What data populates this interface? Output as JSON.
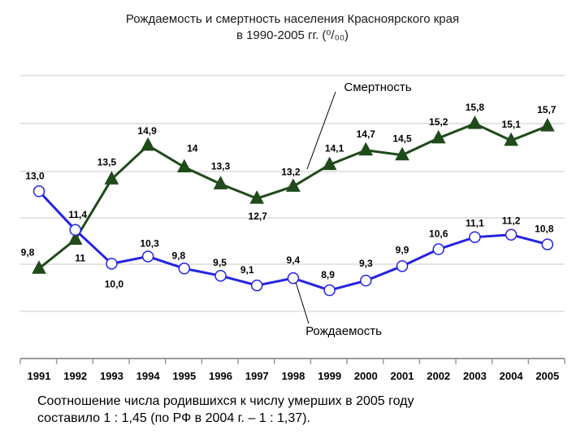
{
  "title_line1": "Рождаемость и смертность населения Красноярского края",
  "title_line2": "в 1990-2005 гг. (⁰/₀₀)",
  "footnote_line1": "Соотношение числа родившихся к числу умерших в 2005 году",
  "footnote_line2": "составило 1 : 1,45 (по РФ в 2004 г. – 1 : 1,37).",
  "colors": {
    "mortality": "#1f4a1a",
    "mortality_marker": "#1f4a1a",
    "birth": "#2424e0",
    "birth_marker_fill": "#ffffff",
    "grid": "#c8c8c8",
    "axis": "#9a9a9a",
    "label": "#000000"
  },
  "chart_data": {
    "type": "line",
    "categories": [
      "1991",
      "1992",
      "1993",
      "1994",
      "1995",
      "1996",
      "1997",
      "1998",
      "1999",
      "2000",
      "2001",
      "2002",
      "2003",
      "2004",
      "2005"
    ],
    "series": [
      {
        "name": "Смертность",
        "values": [
          9.8,
          11.0,
          13.5,
          14.9,
          14.0,
          13.3,
          12.7,
          13.2,
          14.1,
          14.7,
          14.5,
          15.2,
          15.8,
          15.1,
          15.7
        ],
        "labels": [
          "9,8",
          "11",
          "13,5",
          "14,9",
          "14",
          "13,3",
          "12,7",
          "13,2",
          "14,1",
          "14,7",
          "14,5",
          "15,2",
          "15,8",
          "15,1",
          "15,7"
        ]
      },
      {
        "name": "Рождаемость",
        "values": [
          13.0,
          11.4,
          10.0,
          10.3,
          9.8,
          9.5,
          9.1,
          9.4,
          8.9,
          9.3,
          9.9,
          10.6,
          11.1,
          11.2,
          10.8
        ],
        "labels": [
          "13,0",
          "11,4",
          "10,0",
          "10,3",
          "9,8",
          "9,5",
          "9,1",
          "9,4",
          "8,9",
          "9,3",
          "9,9",
          "10,6",
          "11,1",
          "11,2",
          "10,8"
        ]
      }
    ],
    "ylim": [
      7,
      17
    ],
    "grid": true,
    "legend": "callout labels on lines"
  }
}
